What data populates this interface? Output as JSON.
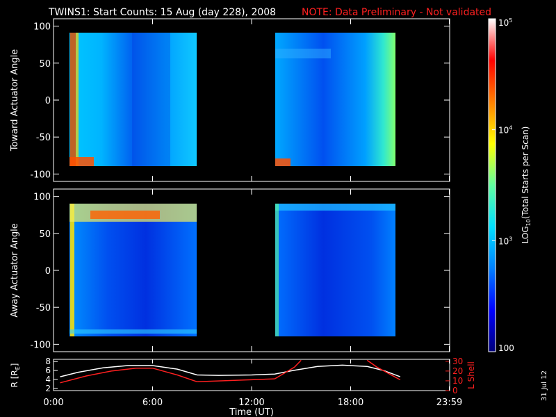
{
  "title": "TWINS1: Start Counts: 15 Aug (day 228), 2008",
  "note": "NOTE: Data Preliminary - Not validated",
  "date_stamp": "31 Jul 12",
  "colorbar": {
    "label": "LOG10(Total Starts per Scan)",
    "label_prefix": "LOG",
    "label_sub": "10",
    "label_suffix": "(Total Starts per Scan)",
    "ticks": [
      {
        "base": "10",
        "exp": "5",
        "value": 100000
      },
      {
        "base": "10",
        "exp": "4",
        "value": 10000
      },
      {
        "base": "10",
        "exp": "3",
        "value": 1000
      },
      {
        "base": "100",
        "exp": "",
        "value": 100
      }
    ],
    "colors": [
      "#00007a",
      "#0000ff",
      "#0080ff",
      "#00e0ff",
      "#60ffa0",
      "#ffff00",
      "#ff8000",
      "#ff0000",
      "#ffffff"
    ]
  },
  "chart_data": [
    {
      "type": "heatmap",
      "ylabel": "Toward Actuator Angle",
      "yticks": [
        "100",
        "50",
        "0",
        "-50",
        "-100"
      ],
      "ylim": [
        -110,
        110
      ],
      "xlim": [
        0,
        24
      ],
      "blocks": [
        {
          "x_start_hr": 0.4,
          "x_end_hr": 8.7,
          "y_min": -88,
          "y_max": 90,
          "base_level": "cyan-blue",
          "features": [
            "red/orange vertical band near 0.5-0.8 UT",
            "orange patch near -85 deg at start"
          ]
        },
        {
          "x_start_hr": 13.4,
          "x_end_hr": 21.0,
          "y_min": -88,
          "y_max": 90,
          "base_level": "blue-cyan",
          "features": [
            "orange patch near -85 deg at start",
            "cyan-green band near end"
          ]
        }
      ]
    },
    {
      "type": "heatmap",
      "ylabel": "Away Actuator Angle",
      "yticks": [
        "100",
        "50",
        "0",
        "-50",
        "-100"
      ],
      "ylim": [
        -110,
        110
      ],
      "xlim": [
        0,
        24
      ],
      "blocks": [
        {
          "x_start_hr": 0.4,
          "x_end_hr": 8.7,
          "y_min": -88,
          "y_max": 90,
          "base_level": "blue",
          "features": [
            "orange/yellow band near 75-85 deg",
            "yellow vertical band near 0.5 UT"
          ]
        },
        {
          "x_start_hr": 13.4,
          "x_end_hr": 21.0,
          "y_min": -88,
          "y_max": 90,
          "base_level": "blue",
          "features": [
            "cyan band near 85 deg"
          ]
        }
      ]
    },
    {
      "type": "line",
      "xlabel": "Time (UT)",
      "xticks": [
        "0:00",
        "6:00",
        "12:00",
        "18:00",
        "23:59"
      ],
      "xtick_values": [
        0,
        6,
        12,
        18,
        23.98
      ],
      "ylabel_left": "R [RE]",
      "ylabel_left_prefix": "R [R",
      "ylabel_left_sub": "E",
      "ylabel_left_suffix": "]",
      "ylabel_right": "L Shell",
      "yticks_left": [
        "8",
        "6",
        "4",
        "2"
      ],
      "yticks_left_values": [
        8,
        6,
        4,
        2
      ],
      "yticks_right": [
        "30",
        "20",
        "10",
        "0"
      ],
      "yticks_right_values": [
        30,
        20,
        10,
        0
      ],
      "ylim_left": [
        1.5,
        8.5
      ],
      "ylim_right": [
        0,
        32
      ],
      "series": [
        {
          "name": "R",
          "axis": "left",
          "color": "#ffffff",
          "x": [
            0.4,
            1.5,
            3.0,
            4.5,
            6.0,
            7.5,
            8.7,
            10,
            12,
            13.4,
            14.5,
            16,
            17.5,
            19,
            20,
            21.0
          ],
          "y": [
            4.6,
            5.6,
            6.6,
            7.1,
            7.1,
            6.3,
            5.0,
            4.9,
            5.0,
            5.2,
            6.0,
            6.9,
            7.2,
            6.9,
            6.0,
            4.6
          ]
        },
        {
          "name": "L Shell",
          "axis": "right",
          "color": "#ff2020",
          "segments": [
            {
              "x": [
                0.4,
                2.0,
                3.5,
                5.0,
                6.0,
                7.5,
                8.7
              ],
              "y": [
                8,
                15,
                20,
                23,
                23,
                16,
                9
              ]
            },
            {
              "x": [
                8.7,
                13.4
              ],
              "y": [
                9,
                12
              ]
            },
            {
              "x": [
                13.4,
                14.6,
                15.0
              ],
              "y": [
                12,
                24,
                31
              ]
            },
            {
              "x": [
                19.0,
                19.6,
                21.0
              ],
              "y": [
                31,
                24,
                11
              ]
            }
          ]
        }
      ]
    }
  ]
}
